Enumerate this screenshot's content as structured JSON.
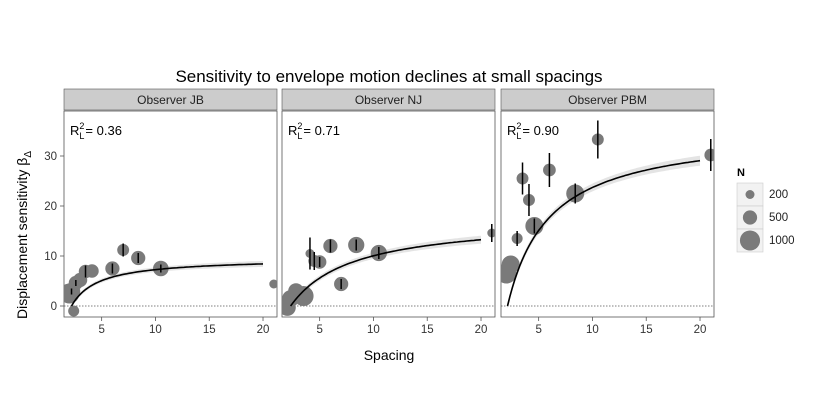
{
  "chart_data": {
    "type": "scatter",
    "title": "Sensitivity to envelope motion declines at small spacings",
    "xlabel": "Spacing",
    "ylabel_text": "Displacement sensitivity ",
    "ylabel_symbol": "β",
    "ylabel_sub": "Δ",
    "xlim": [
      1.5,
      21.3
    ],
    "ylim": [
      -2.2,
      39
    ],
    "x_ticks": [
      5,
      10,
      15,
      20
    ],
    "y_ticks": [
      0,
      10,
      20,
      30
    ],
    "grid": false,
    "zero_line": true,
    "legend": {
      "title": "N",
      "entries": [
        {
          "label": "200",
          "value": 200
        },
        {
          "label": "500",
          "value": 500
        },
        {
          "label": "1000",
          "value": 1000
        }
      ],
      "position": "right"
    },
    "panels": [
      {
        "strip": "Observer JB",
        "r2_label": "R",
        "r2_sub": "L",
        "r2_sup": "2",
        "r2_value": "= 0.36",
        "fit": {
          "ymax": 9.6,
          "x_half": 2.5,
          "x_start": 2.2,
          "x_end": 20
        },
        "ribbon_halfwidth": 0.6,
        "points": [
          {
            "x": 2.0,
            "y": 2.5,
            "n": 1000
          },
          {
            "x": 2.2,
            "y": 2.9,
            "n": 750,
            "err": 0.6
          },
          {
            "x": 2.4,
            "y": -1.0,
            "n": 300
          },
          {
            "x": 2.6,
            "y": 4.6,
            "n": 500,
            "err": 0.6
          },
          {
            "x": 3.0,
            "y": 5.2,
            "n": 500
          },
          {
            "x": 3.5,
            "y": 6.9,
            "n": 450,
            "err": 1.2
          },
          {
            "x": 4.1,
            "y": 7.0,
            "n": 450
          },
          {
            "x": 6.0,
            "y": 7.5,
            "n": 500,
            "err": 1.0
          },
          {
            "x": 7.0,
            "y": 11.2,
            "n": 350,
            "err": 1.3
          },
          {
            "x": 8.4,
            "y": 9.6,
            "n": 500,
            "err": 1.0
          },
          {
            "x": 10.5,
            "y": 7.5,
            "n": 600,
            "err": 0.8
          },
          {
            "x": 21.0,
            "y": 4.4,
            "n": 200
          }
        ]
      },
      {
        "strip": "Observer NJ",
        "r2_label": "R",
        "r2_sub": "L",
        "r2_sup": "2",
        "r2_value": "= 0.71",
        "fit": {
          "ymax": 17.6,
          "x_half": 5.8,
          "x_start": 2.3,
          "x_end": 20
        },
        "ribbon_halfwidth": 0.8,
        "points": [
          {
            "x": 2.0,
            "y": -0.3,
            "n": 700
          },
          {
            "x": 2.3,
            "y": 1.5,
            "n": 700
          },
          {
            "x": 2.8,
            "y": 3.0,
            "n": 600
          },
          {
            "x": 3.5,
            "y": 2.0,
            "n": 1000
          },
          {
            "x": 4.1,
            "y": 10.5,
            "n": 200,
            "err": 3.2
          },
          {
            "x": 4.5,
            "y": 9.0,
            "n": 350,
            "err": 1.8
          },
          {
            "x": 5.0,
            "y": 8.8,
            "n": 450,
            "err": 1.0
          },
          {
            "x": 6.0,
            "y": 12.0,
            "n": 500,
            "err": 1.3
          },
          {
            "x": 7.0,
            "y": 4.4,
            "n": 500,
            "err": 1.0
          },
          {
            "x": 8.4,
            "y": 12.2,
            "n": 650,
            "err": 1.1
          },
          {
            "x": 10.5,
            "y": 10.6,
            "n": 650,
            "err": 1.2
          },
          {
            "x": 21.0,
            "y": 14.6,
            "n": 200,
            "err": 1.8
          }
        ]
      },
      {
        "strip": "Observer PBM",
        "r2_label": "R",
        "r2_sub": "L",
        "r2_sup": "2",
        "r2_value": "= 0.90",
        "fit": {
          "ymax": 35.4,
          "x_half": 3.9,
          "x_start": 2.1,
          "x_end": 20
        },
        "ribbon_halfwidth": 1.0,
        "points": [
          {
            "x": 2.0,
            "y": 6.5,
            "n": 1000
          },
          {
            "x": 2.4,
            "y": 8.3,
            "n": 800
          },
          {
            "x": 3.0,
            "y": 13.5,
            "n": 300,
            "err": 1.5
          },
          {
            "x": 3.5,
            "y": 25.5,
            "n": 350,
            "err": 3.2
          },
          {
            "x": 4.1,
            "y": 21.2,
            "n": 350,
            "err": 3.2
          },
          {
            "x": 4.6,
            "y": 16.0,
            "n": 800,
            "err": 1.5
          },
          {
            "x": 6.0,
            "y": 27.2,
            "n": 400,
            "err": 3.4
          },
          {
            "x": 8.4,
            "y": 22.5,
            "n": 800,
            "err": 2.0
          },
          {
            "x": 10.5,
            "y": 33.3,
            "n": 350,
            "err": 3.8
          },
          {
            "x": 21.0,
            "y": 30.2,
            "n": 400,
            "err": 3.2
          }
        ]
      }
    ]
  }
}
